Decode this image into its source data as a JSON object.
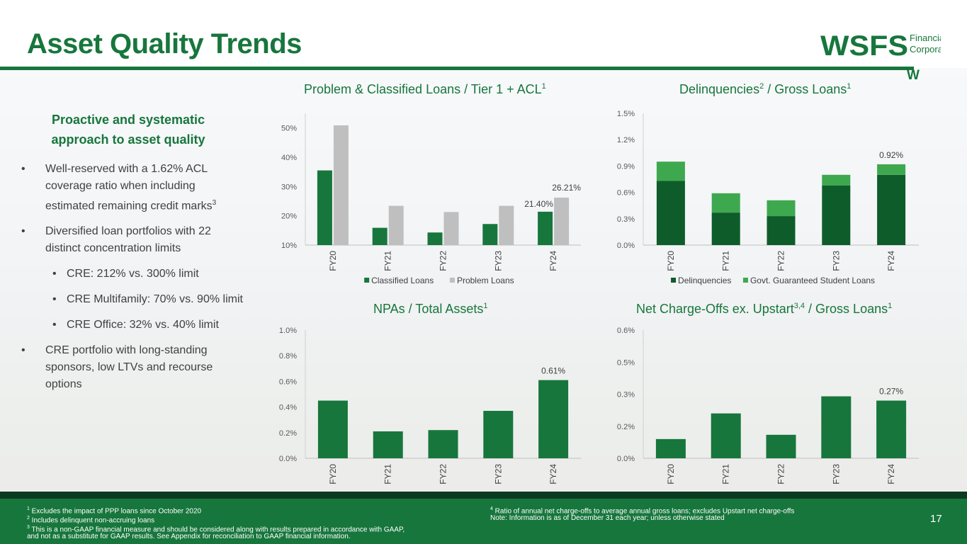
{
  "page": {
    "title": "Asset Quality Trends",
    "page_number": "17",
    "logo": {
      "brand": "WSFS",
      "line1": "Financial",
      "line2": "Corporation",
      "mark": "W"
    },
    "colors": {
      "brand_green": "#17763c",
      "dark_green": "#0f5c2b",
      "light_green": "#3ea84f",
      "gray": "#bfbfbf"
    }
  },
  "left": {
    "heading_line1": "Proactive and systematic",
    "heading_line2": "approach to asset quality",
    "bullet_char": "•",
    "bullets": [
      {
        "text": "Well-reserved with a 1.62% ACL coverage ratio when including estimated remaining credit marks",
        "sup": "3"
      },
      {
        "text": "Diversified loan portfolios with 22 distinct concentration limits",
        "sup": ""
      },
      {
        "text": "CRE: 212% vs. 300% limit",
        "sup": ""
      },
      {
        "text": "CRE Multifamily: 70% vs. 90% limit",
        "sup": ""
      },
      {
        "text": "CRE Office: 32% vs. 40% limit",
        "sup": ""
      },
      {
        "text": "CRE portfolio with long-standing sponsors, low LTVs and recourse options",
        "sup": ""
      }
    ]
  },
  "chart_titles": {
    "c1": {
      "text": "Problem & Classified Loans / Tier 1 + ACL",
      "sup": "1"
    },
    "c2": {
      "text": "Delinquencies",
      "sup_mid": "2",
      "text2": " / Gross Loans",
      "sup": "1"
    },
    "c3": {
      "text": "NPAs / Total Assets",
      "sup": "1"
    },
    "c4": {
      "text": "Net Charge-Offs ex. Upstart",
      "sup_mid": "3,4",
      "text2": " / Gross Loans",
      "sup": "1"
    }
  },
  "chart_data": [
    {
      "type": "bar",
      "title": "Problem & Classified Loans / Tier 1 + ACL",
      "categories": [
        "FY20",
        "FY21",
        "FY22",
        "FY23",
        "FY24"
      ],
      "series": [
        {
          "name": "Classified Loans",
          "values": [
            35.5,
            15.9,
            14.3,
            17.2,
            21.4
          ]
        },
        {
          "name": "Problem Loans",
          "values": [
            50.9,
            23.4,
            21.3,
            23.4,
            26.21
          ]
        }
      ],
      "ylim": [
        10,
        55
      ],
      "yticks": [
        "10%",
        "20%",
        "30%",
        "40%",
        "50%"
      ],
      "data_labels": [
        "21.40%",
        "26.21%"
      ],
      "legend": [
        "Classified Loans",
        "Problem Loans"
      ]
    },
    {
      "type": "bar",
      "stacked": true,
      "title": "Delinquencies / Gross Loans",
      "categories": [
        "FY20",
        "FY21",
        "FY22",
        "FY23",
        "FY24"
      ],
      "series": [
        {
          "name": "Delinquencies",
          "values": [
            0.73,
            0.37,
            0.33,
            0.68,
            0.8
          ]
        },
        {
          "name": "Govt. Guaranteed Student Loans",
          "values": [
            0.22,
            0.22,
            0.18,
            0.12,
            0.12
          ]
        }
      ],
      "ylim": [
        0,
        1.5
      ],
      "yticks": [
        "0.0%",
        "0.3%",
        "0.6%",
        "0.9%",
        "1.2%",
        "1.5%"
      ],
      "data_labels": [
        "0.92%"
      ],
      "legend": [
        "Delinquencies",
        "Govt. Guaranteed Student Loans"
      ]
    },
    {
      "type": "bar",
      "title": "NPAs / Total Assets",
      "categories": [
        "FY20",
        "FY21",
        "FY22",
        "FY23",
        "FY24"
      ],
      "values": [
        0.45,
        0.21,
        0.22,
        0.37,
        0.61
      ],
      "ylim": [
        0,
        1.0
      ],
      "yticks": [
        "0.0%",
        "0.2%",
        "0.4%",
        "0.6%",
        "0.8%",
        "1.0%"
      ],
      "data_labels": [
        "0.61%"
      ]
    },
    {
      "type": "bar",
      "title": "Net Charge-Offs ex. Upstart / Gross Loans",
      "categories": [
        "FY20",
        "FY21",
        "FY22",
        "FY23",
        "FY24"
      ],
      "values": [
        0.09,
        0.21,
        0.11,
        0.29,
        0.27
      ],
      "ylim": [
        0,
        0.6
      ],
      "yticks": [
        "0.0%",
        "0.2%",
        "0.3%",
        "0.5%",
        "0.6%"
      ],
      "data_labels": [
        "0.27%"
      ]
    }
  ],
  "footnotes": {
    "left": [
      {
        "sup": "1",
        "text": " Excludes the impact of PPP loans since October 2020"
      },
      {
        "sup": "2",
        "text": " Includes delinquent non-accruing loans"
      },
      {
        "sup": "3",
        "text": " This is a non-GAAP financial measure and should be considered along with results prepared in accordance with GAAP,"
      },
      {
        "sup": "",
        "text": "and not as a substitute for GAAP results.  See Appendix for reconciliation to GAAP financial information."
      }
    ],
    "right": [
      {
        "sup": "4",
        "text": " Ratio of annual net charge-offs to average annual gross loans; excludes Upstart net charge-offs"
      },
      {
        "sup": "",
        "text": "Note: Information is as of December 31 each year; unless otherwise stated"
      }
    ]
  }
}
